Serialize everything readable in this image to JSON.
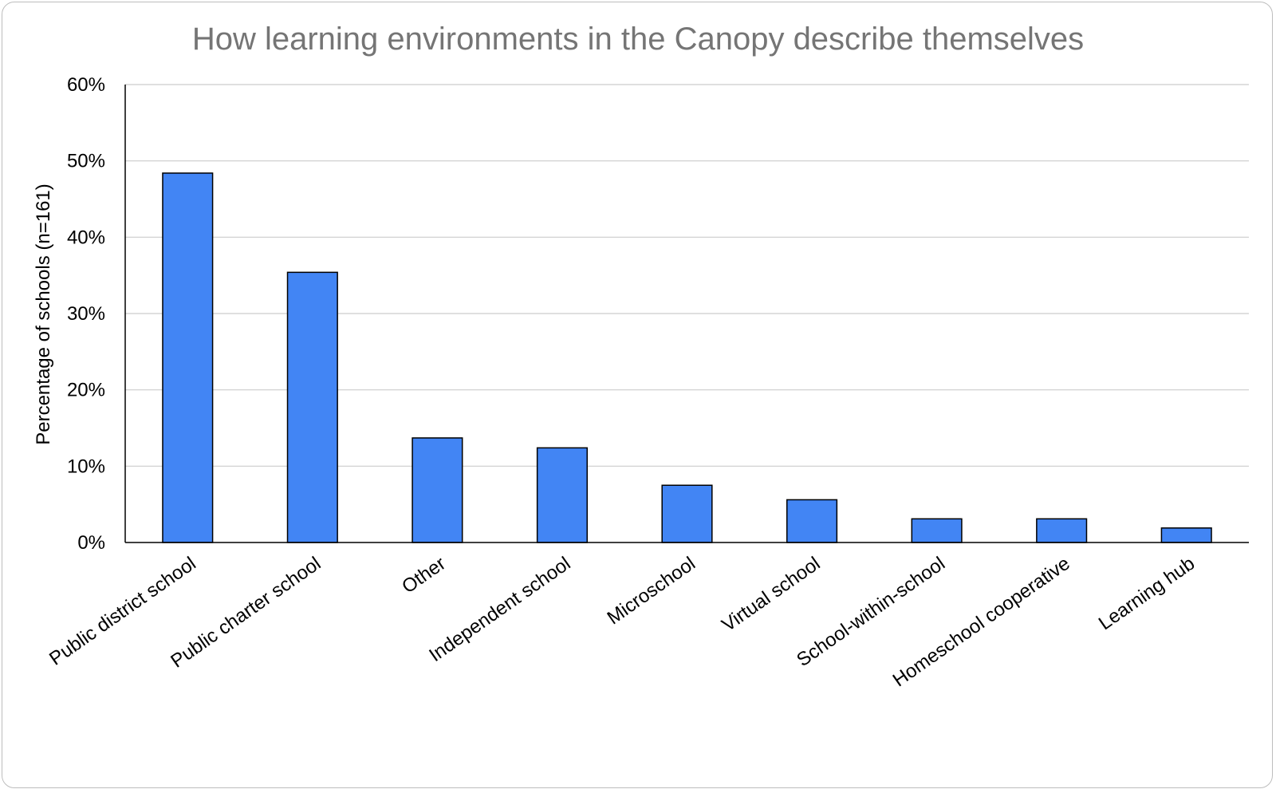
{
  "chart_data": {
    "type": "bar",
    "title": "How learning environments in the Canopy describe themselves",
    "ylabel": "Percentage of schools (n=161)",
    "xlabel": "",
    "categories": [
      "Public district school",
      "Public charter school",
      "Other",
      "Independent school",
      "Microschool",
      "Virtual school",
      "School-within-school",
      "Homeschool cooperative",
      "Learning hub"
    ],
    "values": [
      48.4,
      35.4,
      13.7,
      12.4,
      7.5,
      5.6,
      3.1,
      3.1,
      1.9
    ],
    "ylim": [
      0,
      60
    ],
    "yticks": [
      0,
      10,
      20,
      30,
      40,
      50,
      60
    ],
    "ytick_labels": [
      "0%",
      "10%",
      "20%",
      "30%",
      "40%",
      "50%",
      "60%"
    ],
    "grid": true,
    "legend": "none",
    "colors": {
      "bar": "#4285f4",
      "title": "#757575",
      "grid": "#cccccc"
    }
  }
}
